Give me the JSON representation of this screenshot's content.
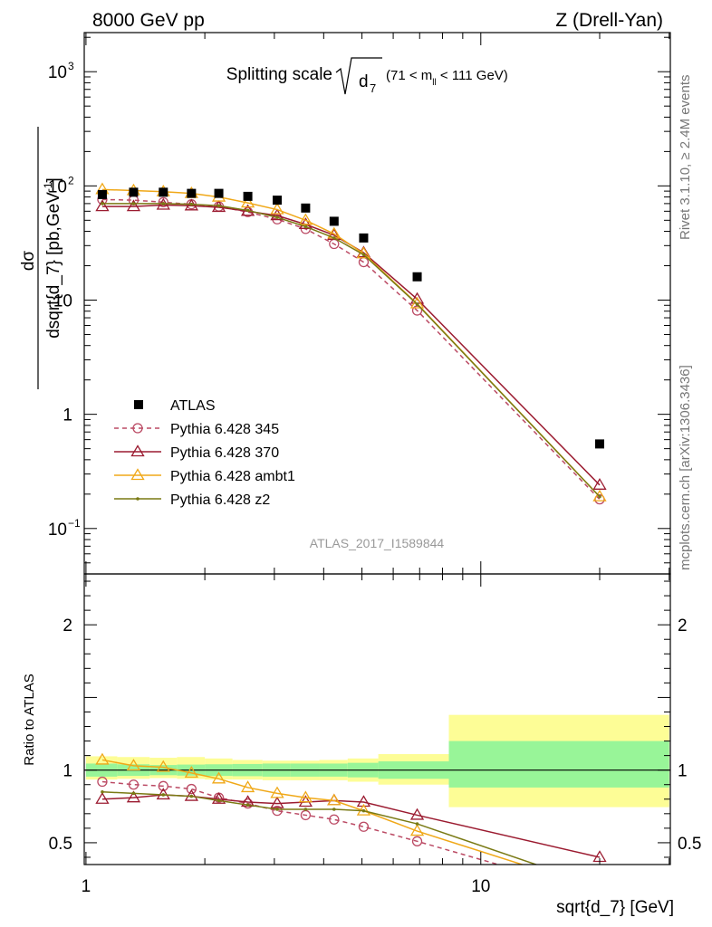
{
  "header": {
    "left": "8000 GeV pp",
    "right": "Z (Drell-Yan)"
  },
  "side_labels": {
    "rivet": "Rivet 3.1.10, ≥ 2.4M events",
    "mcplots": "mcplots.cern.ch [arXiv:1306.3436]"
  },
  "chart_data": {
    "type": "line",
    "title": "Splitting scale",
    "title_symbol": "√d",
    "title_subscript": "7",
    "title_range": "(71 < m",
    "title_range_sub": "ll",
    "title_range_end": " < 111 GeV)",
    "watermark": "ATLAS_2017_I1589844",
    "xlabel": "sqrt{d_7} [GeV]",
    "ylabel": "dσ / dsqrt{d_7} [pb,GeV^-1]",
    "ylabel_num": "dσ",
    "ylabel_den": "dsqrt{d_7} [pb,GeV",
    "ylabel_den_sup": "-1",
    "ylabel_den_close": "]",
    "ratio_ylabel": "Ratio to ATLAS",
    "xscale": "log",
    "yscale": "log",
    "xlim": [
      0.99,
      30.2
    ],
    "ylim": [
      0.04,
      2200
    ],
    "ratio_ylim": [
      0.35,
      2.35
    ],
    "x_ticks": [
      {
        "value": 1,
        "label": "1"
      },
      {
        "value": 10,
        "label": "10"
      }
    ],
    "y_ticks": [
      {
        "value": 1000,
        "label": "10",
        "sup": "3"
      },
      {
        "value": 100,
        "label": "10",
        "sup": "2"
      },
      {
        "value": 10,
        "label": "10",
        "sup": ""
      },
      {
        "value": 1,
        "label": "1",
        "sup": ""
      },
      {
        "value": 0.1,
        "label": "10",
        "sup": "−1"
      }
    ],
    "ratio_ticks": [
      {
        "value": 0.5,
        "label": "0.5"
      },
      {
        "value": 1,
        "label": "1"
      },
      {
        "value": 2,
        "label": "2"
      }
    ],
    "legend_position": "center-left",
    "bin_edges": [
      1,
      1.2,
      1.45,
      1.7,
      2.0,
      2.35,
      2.8,
      3.3,
      3.9,
      4.6,
      5.5,
      8.3,
      30
    ],
    "band_inner": [
      [
        0.955,
        1.045
      ],
      [
        0.96,
        1.04
      ],
      [
        0.965,
        1.035
      ],
      [
        0.962,
        1.038
      ],
      [
        0.96,
        1.04
      ],
      [
        0.958,
        1.042
      ],
      [
        0.955,
        1.045
      ],
      [
        0.955,
        1.045
      ],
      [
        0.955,
        1.045
      ],
      [
        0.95,
        1.05
      ],
      [
        0.94,
        1.06
      ],
      [
        0.88,
        1.2
      ]
    ],
    "band_outer": [
      [
        0.935,
        1.095
      ],
      [
        0.94,
        1.09
      ],
      [
        0.945,
        1.085
      ],
      [
        0.94,
        1.09
      ],
      [
        0.935,
        1.08
      ],
      [
        0.935,
        1.07
      ],
      [
        0.93,
        1.065
      ],
      [
        0.93,
        1.065
      ],
      [
        0.93,
        1.07
      ],
      [
        0.92,
        1.08
      ],
      [
        0.9,
        1.11
      ],
      [
        0.745,
        1.38
      ]
    ],
    "data": {
      "name": "ATLAS",
      "x": [
        1.1,
        1.32,
        1.57,
        1.85,
        2.17,
        2.57,
        3.05,
        3.6,
        4.25,
        5.05,
        6.9,
        20.0
      ],
      "y": [
        84,
        88,
        88,
        86,
        86,
        81,
        75,
        64,
        49,
        35,
        16,
        0.55
      ]
    },
    "series": [
      {
        "name": "Pythia 6.428 345",
        "color": "#bb4a64",
        "dashed": true,
        "marker": "circle",
        "x": [
          1.1,
          1.32,
          1.57,
          1.85,
          2.17,
          2.57,
          3.05,
          3.6,
          4.25,
          5.05,
          6.9,
          20.0
        ],
        "y": [
          76,
          75,
          72,
          69,
          66,
          59,
          51,
          42,
          31,
          21.5,
          8.1,
          0.18
        ],
        "ratio": [
          0.92,
          0.9,
          0.89,
          0.87,
          0.81,
          0.77,
          0.72,
          0.69,
          0.66,
          0.61,
          0.51,
          0.15
        ]
      },
      {
        "name": "Pythia 6.428 370",
        "color": "#9b1b30",
        "dashed": false,
        "marker": "triangle",
        "x": [
          1.1,
          1.32,
          1.57,
          1.85,
          2.17,
          2.57,
          3.05,
          3.6,
          4.25,
          5.05,
          6.9,
          20.0
        ],
        "y": [
          66,
          66,
          68,
          67,
          65,
          60,
          55,
          46,
          37,
          26,
          10.2,
          0.24
        ],
        "ratio": [
          0.8,
          0.81,
          0.83,
          0.82,
          0.8,
          0.78,
          0.77,
          0.78,
          0.79,
          0.78,
          0.69,
          0.4
        ]
      },
      {
        "name": "Pythia 6.428 ambt1",
        "color": "#f0a818",
        "dashed": false,
        "marker": "triangle",
        "x": [
          1.1,
          1.32,
          1.57,
          1.85,
          2.17,
          2.57,
          3.05,
          3.6,
          4.25,
          5.05,
          6.9,
          20.0
        ],
        "y": [
          93,
          91,
          89,
          86,
          80,
          71,
          62,
          50,
          38,
          25.5,
          9.3,
          0.19
        ],
        "ratio": [
          1.07,
          1.03,
          1.02,
          0.98,
          0.94,
          0.88,
          0.84,
          0.81,
          0.79,
          0.72,
          0.58,
          0.18
        ]
      },
      {
        "name": "Pythia 6.428 z2",
        "color": "#7a7a14",
        "dashed": false,
        "marker": "dot",
        "x": [
          1.1,
          1.32,
          1.57,
          1.85,
          2.17,
          2.57,
          3.05,
          3.6,
          4.25,
          5.05,
          6.9,
          20.0
        ],
        "y": [
          70,
          70,
          70,
          69,
          67,
          61,
          53,
          44,
          35,
          25,
          9.2,
          0.19
        ],
        "ratio": [
          0.85,
          0.84,
          0.83,
          0.82,
          0.79,
          0.76,
          0.73,
          0.73,
          0.73,
          0.72,
          0.63,
          0.2
        ]
      }
    ]
  }
}
